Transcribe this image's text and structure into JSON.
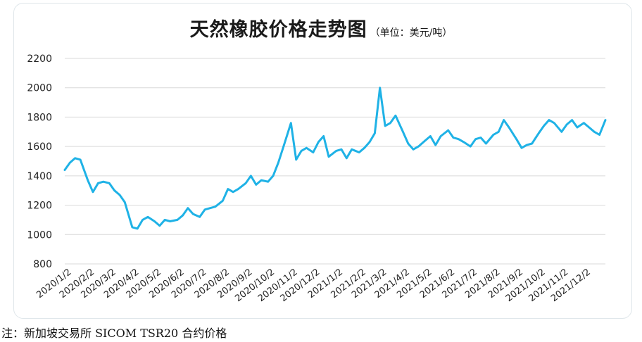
{
  "title": "天然橡胶价格走势图",
  "unit": "（单位：美元/吨）",
  "note": "注：新加坡交易所 SICOM TSR20 合约价格",
  "chart_data": {
    "type": "line",
    "title": "天然橡胶价格走势图",
    "unit": "（单位：美元/吨）",
    "xlabel": "",
    "ylabel": "",
    "ylim": [
      800,
      2200
    ],
    "yticks": [
      800,
      1000,
      1200,
      1400,
      1600,
      1800,
      2000,
      2200
    ],
    "xticks": [
      "2020/1/2",
      "2020/2/2",
      "2020/3/2",
      "2020/4/2",
      "2020/5/2",
      "2020/6/2",
      "2020/7/2",
      "2020/8/2",
      "2020/9/2",
      "2020/10/2",
      "2020/11/2",
      "2020/12/2",
      "2021/1/2",
      "2021/2/2",
      "2021/3/2",
      "2021/4/2",
      "2021/5/2",
      "2021/6/2",
      "2021/7/2",
      "2021/8/2",
      "2021/9/2",
      "2021/10/2",
      "2021/11/2",
      "2021/12/2"
    ],
    "grid": "horizontal",
    "color": "#1fb2e6",
    "series": [
      {
        "x": [
          "2020/1/2",
          "2020/1/9",
          "2020/1/16",
          "2020/1/23",
          "2020/2/2",
          "2020/2/9",
          "2020/2/16",
          "2020/2/23",
          "2020/3/2",
          "2020/3/9",
          "2020/3/16",
          "2020/3/23",
          "2020/4/2",
          "2020/4/9",
          "2020/4/16",
          "2020/4/23",
          "2020/5/2",
          "2020/5/9",
          "2020/5/16",
          "2020/5/23",
          "2020/6/2",
          "2020/6/9",
          "2020/6/16",
          "2020/6/23",
          "2020/7/2",
          "2020/7/9",
          "2020/7/16",
          "2020/7/23",
          "2020/8/2",
          "2020/8/9",
          "2020/8/16",
          "2020/8/23",
          "2020/9/2",
          "2020/9/9",
          "2020/9/16",
          "2020/9/23",
          "2020/10/2",
          "2020/10/9",
          "2020/10/16",
          "2020/10/23",
          "2020/11/2",
          "2020/11/9",
          "2020/11/16",
          "2020/11/23",
          "2020/12/2",
          "2020/12/9",
          "2020/12/16",
          "2020/12/23",
          "2021/1/2",
          "2021/1/9",
          "2021/1/16",
          "2021/1/23",
          "2021/2/2",
          "2021/2/9",
          "2021/2/16",
          "2021/2/23",
          "2021/3/2",
          "2021/3/9",
          "2021/3/16",
          "2021/3/23",
          "2021/4/2",
          "2021/4/9",
          "2021/4/16",
          "2021/4/23",
          "2021/5/2",
          "2021/5/9",
          "2021/5/16",
          "2021/5/23",
          "2021/6/2",
          "2021/6/9",
          "2021/6/16",
          "2021/6/23",
          "2021/7/2",
          "2021/7/9",
          "2021/7/16",
          "2021/7/23",
          "2021/8/2",
          "2021/8/9",
          "2021/8/16",
          "2021/8/23",
          "2021/9/2",
          "2021/9/9",
          "2021/9/16",
          "2021/9/23",
          "2021/10/2",
          "2021/10/9",
          "2021/10/16",
          "2021/10/23",
          "2021/11/2",
          "2021/11/9",
          "2021/11/16",
          "2021/11/23",
          "2021/12/2",
          "2021/12/9",
          "2021/12/16",
          "2021/12/23",
          "2021/12/31"
        ],
        "values": [
          1440,
          1490,
          1520,
          1510,
          1370,
          1290,
          1350,
          1360,
          1350,
          1300,
          1270,
          1220,
          1050,
          1040,
          1100,
          1120,
          1090,
          1060,
          1100,
          1090,
          1100,
          1130,
          1180,
          1140,
          1120,
          1170,
          1180,
          1190,
          1230,
          1310,
          1290,
          1310,
          1350,
          1400,
          1340,
          1370,
          1360,
          1400,
          1490,
          1600,
          1760,
          1510,
          1570,
          1590,
          1560,
          1630,
          1670,
          1530,
          1570,
          1580,
          1520,
          1580,
          1560,
          1590,
          1630,
          1690,
          2000,
          1740,
          1760,
          1810,
          1700,
          1620,
          1580,
          1600,
          1640,
          1670,
          1610,
          1670,
          1710,
          1660,
          1650,
          1630,
          1600,
          1650,
          1660,
          1620,
          1680,
          1700,
          1780,
          1730,
          1650,
          1590,
          1610,
          1620,
          1690,
          1740,
          1780,
          1760,
          1700,
          1750,
          1780,
          1730,
          1760,
          1730,
          1700,
          1680,
          1780
        ]
      }
    ]
  }
}
